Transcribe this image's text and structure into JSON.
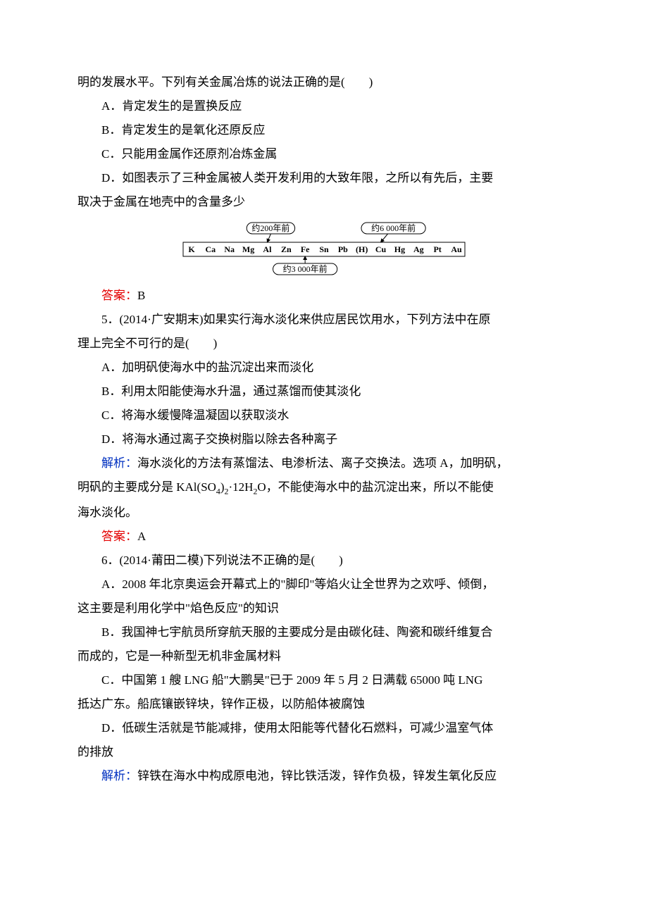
{
  "q4": {
    "cont_line": "明的发展水平。下列有关金属冶炼的说法正确的是(　　)",
    "optA": "A．肯定发生的是置换反应",
    "optB": "B．肯定发生的是氧化还原反应",
    "optC": "C．只能用金属作还原剂冶炼金属",
    "optD_line1": "D．如图表示了三种金属被人类开发利用的大致年限，之所以有先后，主要",
    "optD_line2": "取决于金属在地壳中的含量多少",
    "answer_label": "答案：",
    "answer": "B",
    "diagram": {
      "label200": "约200年前",
      "label6000": "约6 000年前",
      "label3000": "约3 000年前",
      "elements": [
        "K",
        "Ca",
        "Na",
        "Mg",
        "Al",
        "Zn",
        "Fe",
        "Sn",
        "Pb",
        "(H)",
        "Cu",
        "Hg",
        "Ag",
        "Pt",
        "Au"
      ],
      "box_stroke": "#000000",
      "box_fill": "#ffffff",
      "text_color": "#000000",
      "font_size_labels": 12,
      "font_size_elements": 12,
      "arrow_targets": {
        "al_index": 4,
        "fe_index": 6,
        "cu_index": 10
      }
    }
  },
  "q5": {
    "stem_line1": "5．(2014·广安期末)如果实行海水淡化来供应居民饮用水，下列方法中在原",
    "stem_line2": "理上完全不可行的是(　　)",
    "optA": "A．加明矾使海水中的盐沉淀出来而淡化",
    "optB": "B．利用太阳能使海水升温，通过蒸馏而使其淡化",
    "optC": "C．将海水缓慢降温凝固以获取淡水",
    "optD": "D．将海水通过离子交换树脂以除去各种离子",
    "explain_label": "解析：",
    "explain_line1_rest": "海水淡化的方法有蒸馏法、电渗析法、离子交换法。选项 A，加明矾，",
    "explain_line2a": "明矾的主要成分是 KAl(SO",
    "explain_line2b": ")",
    "explain_line2c": "·12H",
    "explain_line2d": "O，不能使海水中的盐沉淀出来，所以不能使",
    "explain_line3": "海水淡化。",
    "answer_label": "答案：",
    "answer": "A"
  },
  "q6": {
    "stem": "6．(2014·莆田二模)下列说法不正确的是(　　)",
    "optA_line1": "A．2008 年北京奥运会开幕式上的\"脚印\"等焰火让全世界为之欢呼、倾倒，",
    "optA_line2": "这主要是利用化学中\"焰色反应\"的知识",
    "optB_line1": "B．我国神七宇航员所穿航天服的主要成分是由碳化硅、陶瓷和碳纤维复合",
    "optB_line2": "而成的，它是一种新型无机非金属材料",
    "optC_line1": "C．中国第 1 艘 LNG 船\"大鹏昊\"已于 2009 年 5 月 2 日满载 65000 吨 LNG",
    "optC_line2": "抵达广东。船底镶嵌锌块，锌作正极，以防船体被腐蚀",
    "optD_line1": "D．低碳生活就是节能减排，使用太阳能等代替化石燃料，可减少温室气体",
    "optD_line2": "的排放",
    "explain_label": "解析：",
    "explain_rest": "锌铁在海水中构成原电池，锌比铁活泼，锌作负极，锌发生氧化反应"
  }
}
